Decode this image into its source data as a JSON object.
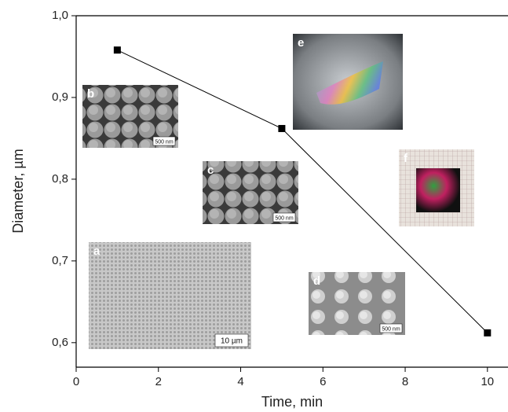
{
  "chart_data": {
    "type": "line",
    "x_label": "Time, min",
    "y_label": "Diameter, µm",
    "x": [
      1,
      5,
      10
    ],
    "series": [
      {
        "values": [
          0.958,
          0.862,
          0.612
        ],
        "color": "#000000"
      }
    ],
    "xlim": [
      0,
      10.5
    ],
    "xticks": [
      0,
      2,
      4,
      6,
      8,
      10
    ],
    "ylim": [
      0.57,
      1.0
    ],
    "yticks": [
      {
        "value": 0.6,
        "label": "0,6"
      },
      {
        "value": 0.7,
        "label": "0,7"
      },
      {
        "value": 0.8,
        "label": "0,8"
      },
      {
        "value": 0.9,
        "label": "0,9"
      },
      {
        "value": 1.0,
        "label": "1,0"
      }
    ],
    "insets": [
      {
        "label": "e"
      },
      {
        "label": "b",
        "scale_bar": "500 nm"
      },
      {
        "label": "c",
        "scale_bar": "500 nm"
      },
      {
        "label": "f"
      },
      {
        "label": "a",
        "scale_bar": "10 µm"
      },
      {
        "label": "d",
        "scale_bar": "500 nm"
      }
    ]
  }
}
